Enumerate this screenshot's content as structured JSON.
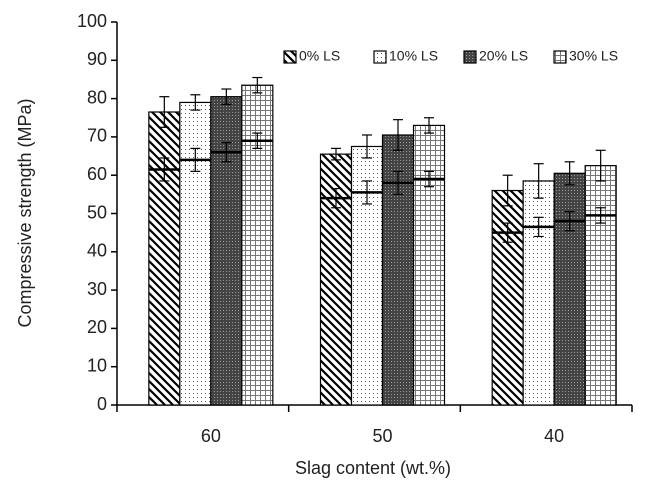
{
  "chart_data": {
    "type": "bar",
    "x_label": "Slag content (wt.%)",
    "y_label": "Compressive strength (MPa)",
    "categories": [
      "60",
      "50",
      "40"
    ],
    "ylim": [
      0,
      100
    ],
    "yticks": [
      0,
      10,
      20,
      30,
      40,
      50,
      60,
      70,
      80,
      90,
      100
    ],
    "legend": "top-right",
    "series": [
      {
        "name": "0% LS",
        "pattern": "diagonal",
        "values": [
          76.5,
          65.5,
          56
        ],
        "errors": [
          4,
          1.5,
          4
        ],
        "inner_values": [
          61.5,
          54,
          45
        ],
        "inner_errors": [
          3,
          2.5,
          2.5
        ]
      },
      {
        "name": "10% LS",
        "pattern": "dots",
        "values": [
          79,
          67.5,
          58.5
        ],
        "errors": [
          2,
          3,
          4.5
        ],
        "inner_values": [
          64,
          55.5,
          46.5
        ],
        "inner_errors": [
          3,
          3,
          2.5
        ]
      },
      {
        "name": "20% LS",
        "pattern": "dense",
        "values": [
          80.5,
          70.5,
          60.5
        ],
        "errors": [
          2,
          4,
          3
        ],
        "inner_values": [
          66,
          58,
          48
        ],
        "inner_errors": [
          2.5,
          3,
          2.5
        ]
      },
      {
        "name": "30% LS",
        "pattern": "grid",
        "values": [
          83.5,
          73,
          62.5
        ],
        "errors": [
          2,
          2,
          4
        ],
        "inner_values": [
          69,
          59,
          49.5
        ],
        "inner_errors": [
          2,
          2,
          2
        ]
      }
    ]
  }
}
